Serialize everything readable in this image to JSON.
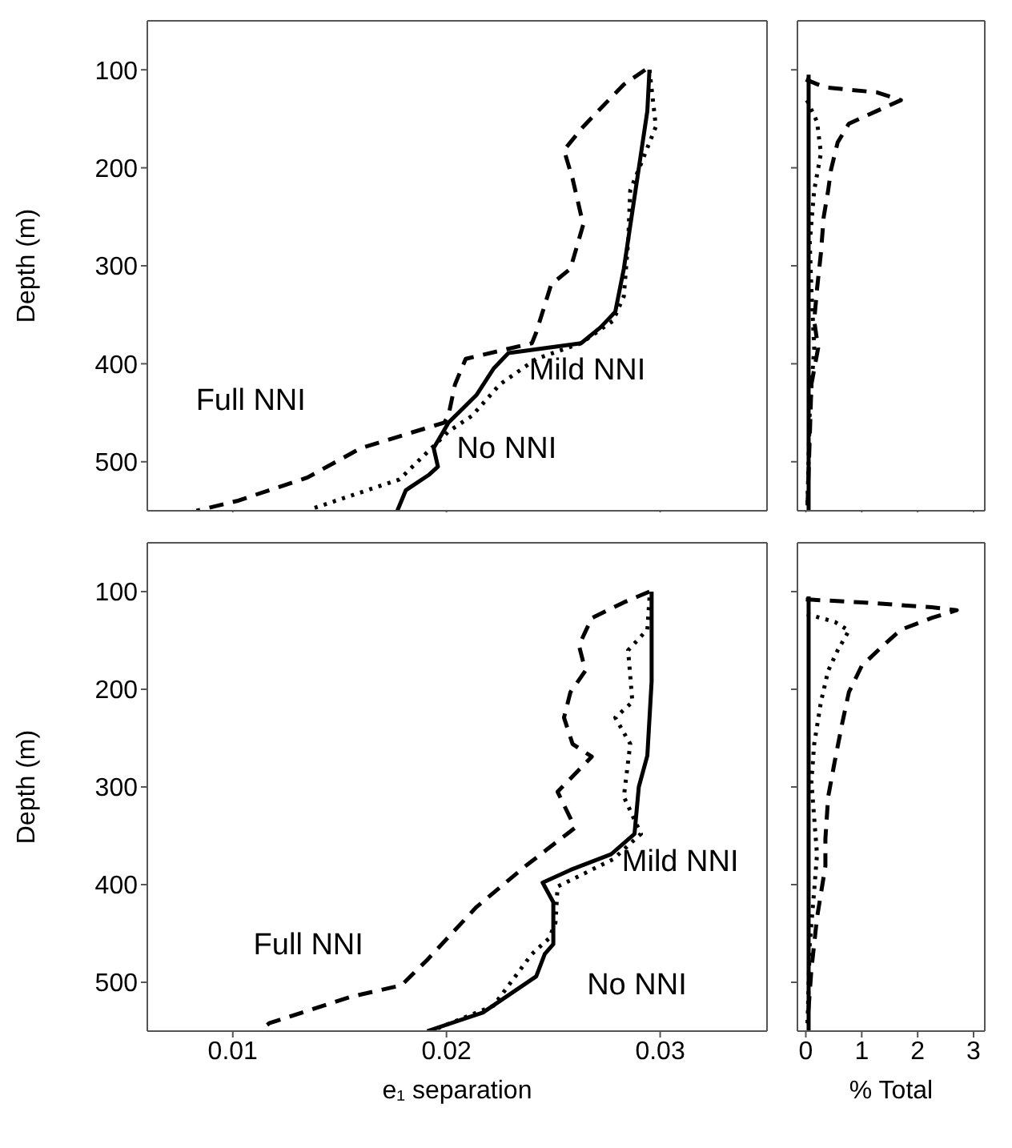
{
  "chart_data": [
    {
      "type": "line",
      "ylabel": "Depth (m)",
      "xlim": [
        0.006,
        0.035
      ],
      "xticks": [
        0.01,
        0.02,
        0.03
      ],
      "ylim": [
        550,
        50
      ],
      "yticks": [
        100,
        200,
        300,
        400,
        500
      ],
      "tick_labels": "y",
      "marker": "none",
      "series": [
        {
          "color": "#000000",
          "line_style": "dashed",
          "x": [
            0.0293,
            0.0283,
            0.0271,
            0.0264,
            0.0255,
            0.0259,
            0.0264,
            0.0258,
            0.0249,
            0.0242,
            0.024,
            0.0209,
            0.0204,
            0.0201,
            0.0199,
            0.016,
            0.0135,
            0.0102,
            0.0083
          ],
          "values": [
            100,
            115,
            142,
            158,
            182,
            211,
            258,
            303,
            319,
            368,
            379,
            395,
            421,
            452,
            460,
            486,
            516,
            540,
            550
          ]
        },
        {
          "color": "#000000",
          "line_style": "dotted",
          "x": [
            0.0295,
            0.0298,
            0.0286,
            0.0285,
            0.0283,
            0.0278,
            0.0263,
            0.0242,
            0.0225,
            0.0212,
            0.0201,
            0.0178,
            0.0137
          ],
          "values": [
            100,
            158,
            223,
            276,
            331,
            356,
            379,
            395,
            421,
            453,
            469,
            518,
            548
          ]
        },
        {
          "color": "#000000",
          "line_style": "solid",
          "x": [
            0.0295,
            0.0294,
            0.0283,
            0.0279,
            0.0272,
            0.0263,
            0.0229,
            0.0222,
            0.0214,
            0.0201,
            0.0194,
            0.0196,
            0.0192,
            0.0181,
            0.0177
          ],
          "values": [
            100,
            142,
            303,
            347,
            363,
            379,
            389,
            405,
            432,
            460,
            486,
            505,
            513,
            529,
            550
          ]
        }
      ],
      "annotations": [
        "Full NNI",
        "Mild NNI",
        "No NNI"
      ]
    },
    {
      "type": "line",
      "xlim": [
        -0.15,
        3.2
      ],
      "xticks": [
        0,
        1,
        2,
        3
      ],
      "ylim": [
        550,
        50
      ],
      "yticks": [
        100,
        200,
        300,
        400,
        500
      ],
      "tick_labels": false,
      "marker": "none",
      "series": [
        {
          "color": "#000000",
          "line_style": "dashed",
          "x": [
            0,
            0.35,
            1.27,
            1.7,
            1.27,
            0.77,
            0.57,
            0.45,
            0.4,
            0.32,
            0.27,
            0.2,
            0.15,
            0.22,
            0.1,
            0.07,
            0.03
          ],
          "values": [
            110,
            118,
            123,
            131,
            142,
            155,
            174,
            202,
            223,
            250,
            287,
            324,
            356,
            384,
            421,
            476,
            545
          ]
        },
        {
          "color": "#000000",
          "line_style": "dotted",
          "x": [
            0.02,
            0.2,
            0.27,
            0.15,
            0.07,
            0.1,
            0.15,
            0.07,
            0.03
          ],
          "values": [
            131,
            153,
            185,
            223,
            276,
            324,
            384,
            448,
            545
          ]
        },
        {
          "color": "#000000",
          "line_style": "solid",
          "x": [
            0.05,
            0.05,
            0.05,
            0.05,
            0.05,
            0.05,
            0.05,
            0.05,
            0.05,
            0.05
          ],
          "values": [
            105,
            150,
            200,
            250,
            300,
            350,
            400,
            450,
            500,
            550
          ]
        }
      ]
    },
    {
      "type": "line",
      "ylabel": "Depth (m)",
      "xlabel": "e₁ separation",
      "xlim": [
        0.006,
        0.035
      ],
      "xticks": [
        0.01,
        0.02,
        0.03
      ],
      "ylim": [
        550,
        50
      ],
      "yticks": [
        100,
        200,
        300,
        400,
        500
      ],
      "marker": "none",
      "series": [
        {
          "color": "#000000",
          "line_style": "dashed",
          "x": [
            0.0295,
            0.0283,
            0.0268,
            0.0262,
            0.0265,
            0.0258,
            0.0255,
            0.0259,
            0.0268,
            0.0252,
            0.0258,
            0.026,
            0.0237,
            0.0214,
            0.0191,
            0.0179,
            0.0155,
            0.0117,
            0.0114
          ],
          "values": [
            100,
            111,
            127,
            155,
            181,
            203,
            229,
            256,
            269,
            305,
            332,
            342,
            381,
            423,
            477,
            503,
            515,
            542,
            547
          ]
        },
        {
          "color": "#000000",
          "line_style": "dotted",
          "x": [
            0.0295,
            0.0294,
            0.0285,
            0.0287,
            0.0279,
            0.0286,
            0.0283,
            0.0291,
            0.0278,
            0.0252,
            0.0251,
            0.0248,
            0.024,
            0.0222,
            0.0196
          ],
          "values": [
            106,
            139,
            160,
            213,
            229,
            256,
            310,
            348,
            374,
            402,
            439,
            455,
            471,
            524,
            547
          ]
        },
        {
          "color": "#000000",
          "line_style": "solid",
          "x": [
            0.0296,
            0.0296,
            0.0294,
            0.029,
            0.0288,
            0.0277,
            0.0258,
            0.0245,
            0.025,
            0.025,
            0.0246,
            0.0242,
            0.0217,
            0.0191
          ],
          "values": [
            100,
            192,
            268,
            300,
            348,
            369,
            385,
            398,
            418,
            461,
            471,
            494,
            531,
            550
          ]
        }
      ],
      "annotations": [
        "Full NNI",
        "Mild NNI",
        "No NNI"
      ]
    },
    {
      "type": "line",
      "xlabel": "% Total",
      "xlim": [
        -0.15,
        3.2
      ],
      "xticks": [
        0,
        1,
        2,
        3
      ],
      "ylim": [
        550,
        50
      ],
      "yticks": [
        100,
        200,
        300,
        400,
        500
      ],
      "tick_labels": "x",
      "marker": "none",
      "series": [
        {
          "color": "#000000",
          "line_style": "dashed",
          "x": [
            0,
            1.0,
            2.25,
            2.7,
            2.25,
            1.7,
            1.35,
            1.0,
            0.77,
            0.65,
            0.52,
            0.4,
            0.35,
            0.35,
            0.2,
            0.1,
            0.03
          ],
          "values": [
            108,
            111,
            116,
            119,
            127,
            139,
            157,
            176,
            203,
            235,
            273,
            310,
            353,
            381,
            434,
            487,
            542
          ]
        },
        {
          "color": "#000000",
          "line_style": "dotted",
          "x": [
            0.02,
            0.52,
            0.77,
            0.57,
            0.4,
            0.27,
            0.15,
            0.1,
            0.15,
            0.2,
            0.15,
            0.07,
            0.03
          ],
          "values": [
            123,
            131,
            140,
            160,
            181,
            213,
            256,
            294,
            332,
            369,
            406,
            461,
            545
          ]
        },
        {
          "color": "#000000",
          "line_style": "solid",
          "x": [
            0.05,
            0.05,
            0.05,
            0.05,
            0.05,
            0.05,
            0.05,
            0.05,
            0.05,
            0.05
          ],
          "values": [
            105,
            150,
            200,
            250,
            300,
            350,
            400,
            450,
            500,
            550
          ]
        }
      ]
    }
  ]
}
